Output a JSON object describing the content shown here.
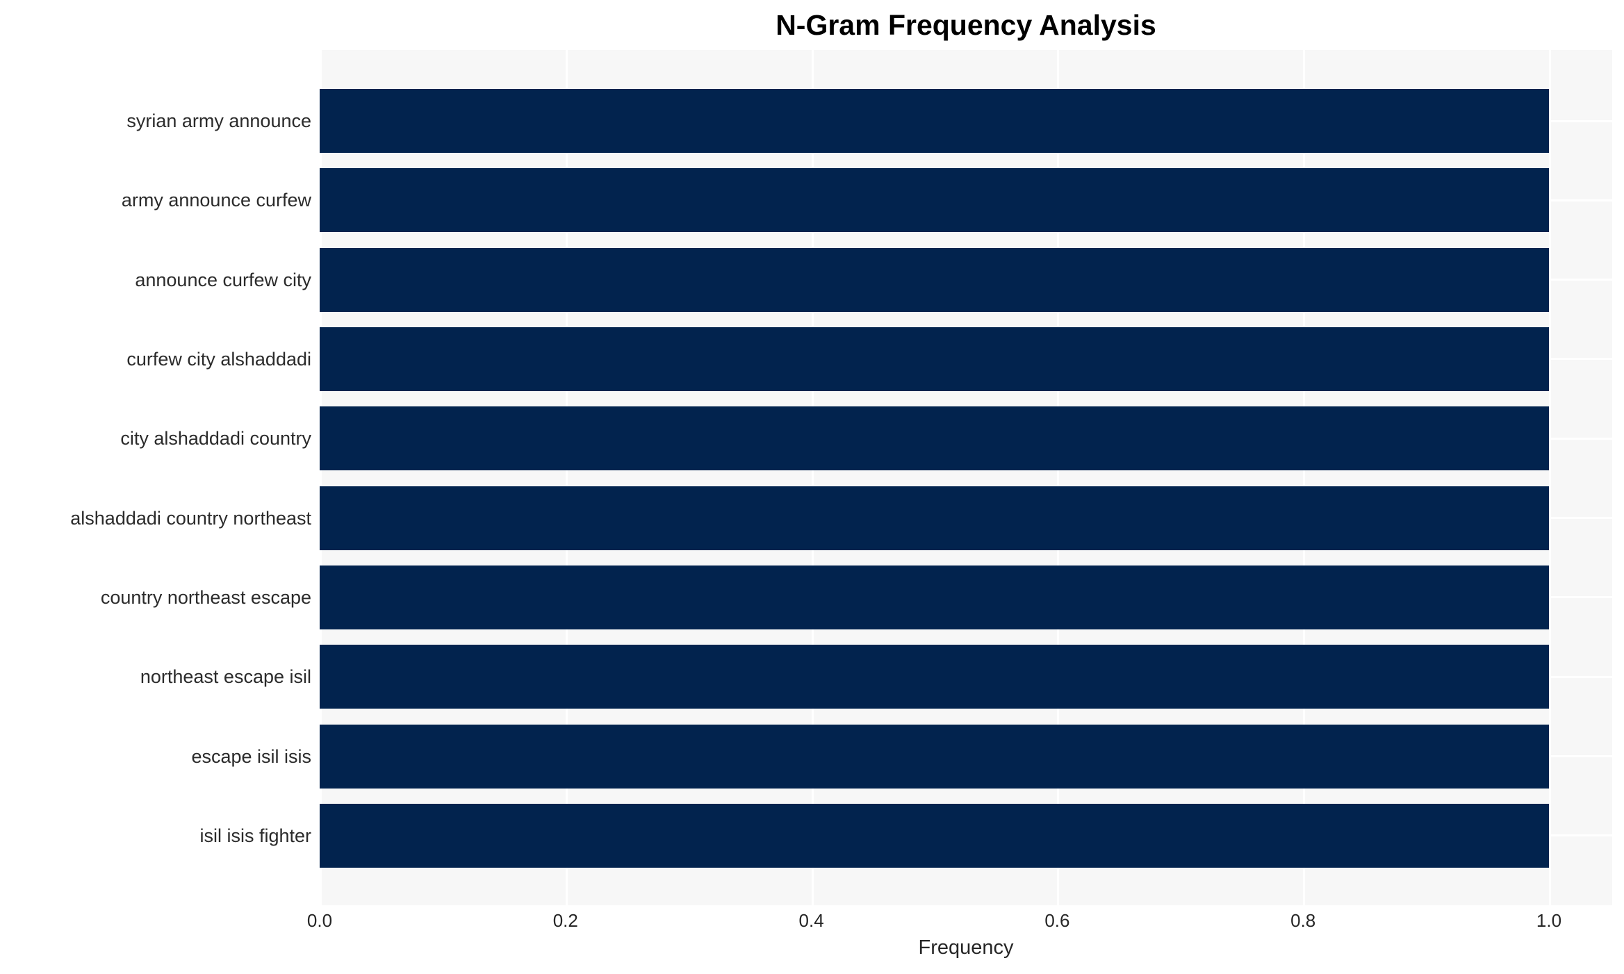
{
  "chart_data": {
    "type": "bar",
    "orientation": "horizontal",
    "title": "N-Gram Frequency Analysis",
    "xlabel": "Frequency",
    "categories": [
      "syrian army announce",
      "army announce curfew",
      "announce curfew city",
      "curfew city alshaddadi",
      "city alshaddadi country",
      "alshaddadi country northeast",
      "country northeast escape",
      "northeast escape isil",
      "escape isil isis",
      "isil isis fighter"
    ],
    "values": [
      1.0,
      1.0,
      1.0,
      1.0,
      1.0,
      1.0,
      1.0,
      1.0,
      1.0,
      1.0
    ],
    "x_ticks": [
      0.0,
      0.2,
      0.4,
      0.6,
      0.8,
      1.0
    ],
    "x_tick_labels": [
      "0.0",
      "0.2",
      "0.4",
      "0.6",
      "0.8",
      "1.0"
    ],
    "xlim": [
      0.0,
      1.05
    ],
    "grid": {
      "vertical": true,
      "horizontal": true,
      "style": "white lines on light gray plot background"
    },
    "legend": false,
    "colors": {
      "bar": "#02234e",
      "plot_background": "#f7f7f7",
      "figure_background": "#ffffff",
      "gridline": "#ffffff",
      "title_text": "#000000",
      "tick_text": "#262626"
    }
  }
}
